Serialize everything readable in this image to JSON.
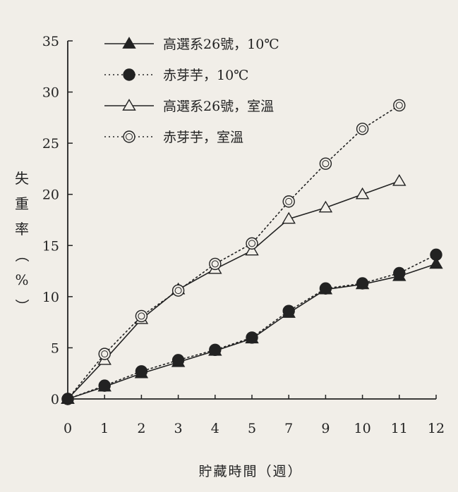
{
  "chart_data": {
    "type": "line",
    "ylabel_chars": [
      "失",
      "重",
      "率",
      "（",
      "%",
      "）"
    ],
    "ylabel": "失重率（%）",
    "xlabel": "貯藏時間（週）",
    "ylim": [
      0,
      35
    ],
    "yticks": [
      "0",
      "5",
      "10",
      "15",
      "20",
      "25",
      "30",
      "35"
    ],
    "ytick_values": [
      0,
      5,
      10,
      15,
      20,
      25,
      30,
      35
    ],
    "categories": [
      "0",
      "1",
      "2",
      "3",
      "4",
      "5",
      "7",
      "9",
      "10",
      "11",
      "12"
    ],
    "grid": false,
    "legend_position": "top-left",
    "series": [
      {
        "name": "高選系26號，10℃",
        "line": "solid",
        "marker": "triangle",
        "filled": true,
        "values": [
          0,
          1.2,
          2.5,
          3.6,
          4.7,
          5.9,
          8.4,
          10.7,
          11.2,
          12.0,
          13.2
        ]
      },
      {
        "name": "赤芽芋，10℃",
        "line": "dotted",
        "marker": "circle",
        "filled": true,
        "values": [
          0,
          1.3,
          2.7,
          3.8,
          4.8,
          6.0,
          8.6,
          10.8,
          11.3,
          12.3,
          14.1
        ]
      },
      {
        "name": "高選系26號，室溫",
        "line": "solid",
        "marker": "triangle",
        "filled": false,
        "values": [
          0,
          3.8,
          7.8,
          10.7,
          12.7,
          14.5,
          17.6,
          18.7,
          20.0,
          21.3,
          null
        ]
      },
      {
        "name": "赤芽芋，室溫",
        "line": "dotted",
        "marker": "circle",
        "filled": false,
        "values": [
          0,
          4.4,
          8.1,
          10.6,
          13.2,
          15.2,
          19.3,
          23.0,
          26.4,
          28.7,
          null
        ]
      }
    ],
    "colors": {
      "ink": "#222222",
      "background": "#f1eee8"
    }
  }
}
